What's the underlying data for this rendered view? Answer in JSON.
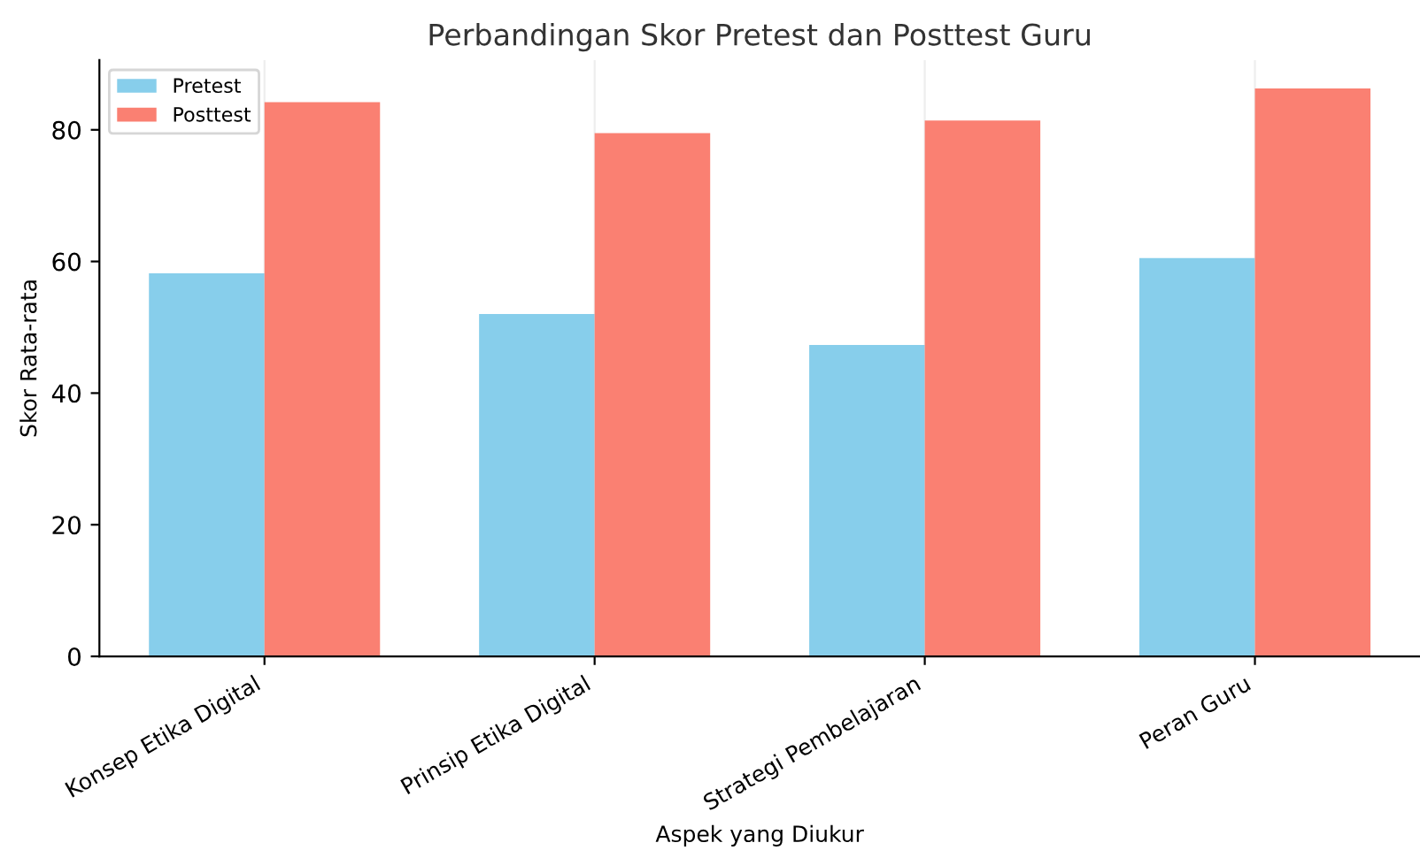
{
  "chart_data": {
    "type": "bar",
    "title": "Perbandingan Skor Pretest dan Posttest Guru",
    "xlabel": "Aspek yang Diukur",
    "ylabel": "Skor Rata-rata",
    "categories": [
      "Konsep Etika Digital",
      "Prinsip Etika Digital",
      "Strategi Pembelajaran",
      "Peran Guru"
    ],
    "series": [
      {
        "name": "Pretest",
        "color": "#87ceeb",
        "values": [
          58.2,
          52.0,
          47.3,
          60.5
        ]
      },
      {
        "name": "Posttest",
        "color": "#fa8072",
        "values": [
          84.2,
          79.5,
          81.4,
          86.3
        ]
      }
    ],
    "ylim": [
      0,
      90.6
    ],
    "yticks": [
      0,
      20,
      40,
      60,
      80
    ],
    "grid": "x",
    "legend": "top left"
  }
}
